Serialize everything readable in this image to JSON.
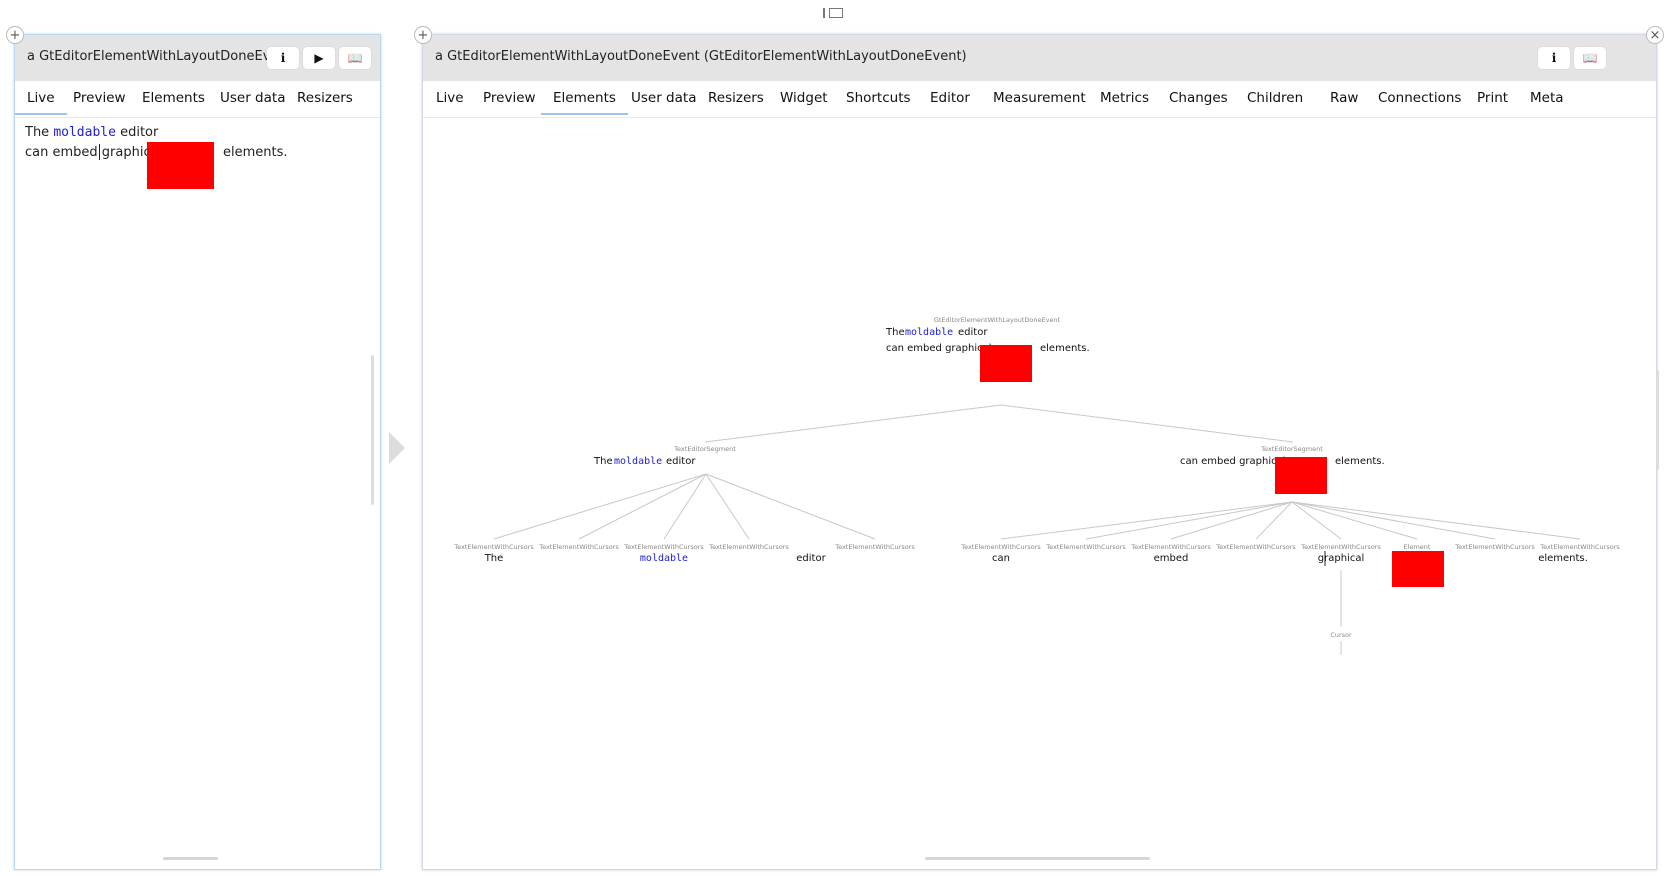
{
  "left_pane": {
    "title": "a GtEditorElementWithLayoutDoneEven",
    "tabs": [
      {
        "label": "Live",
        "active": true
      },
      {
        "label": "Preview"
      },
      {
        "label": "Elements"
      },
      {
        "label": "User data"
      },
      {
        "label": "Resizers"
      }
    ],
    "content": {
      "line1_pre": "The",
      "line1_mono": "moldable",
      "line1_post": "editor",
      "line2_pre": "can embed graphical",
      "line2_post": "elements."
    }
  },
  "right_pane": {
    "title": "a GtEditorElementWithLayoutDoneEvent (GtEditorElementWithLayoutDoneEvent)",
    "tabs": [
      {
        "label": "Live"
      },
      {
        "label": "Preview"
      },
      {
        "label": "Elements",
        "active": true
      },
      {
        "label": "User data"
      },
      {
        "label": "Resizers"
      },
      {
        "label": "Widget"
      },
      {
        "label": "Shortcuts"
      },
      {
        "label": "Editor"
      },
      {
        "label": "Measurement"
      },
      {
        "label": "Metrics"
      },
      {
        "label": "Changes"
      },
      {
        "label": "Children"
      },
      {
        "label": "Raw"
      },
      {
        "label": "Connections"
      },
      {
        "label": "Print"
      },
      {
        "label": "Meta"
      }
    ],
    "tree": {
      "root": {
        "type": "GtEditorElementWithLayoutDoneEvent",
        "line1_pre": "The",
        "line1_mono": "moldable",
        "line1_post": "editor",
        "line2_pre": "can embed graphical",
        "line2_post": "elements."
      },
      "segments": [
        {
          "type": "TextEditorSegment",
          "pre": "The",
          "mono": "moldable",
          "post": "editor",
          "children": [
            {
              "type": "TextElementWithCursors",
              "text": "The"
            },
            {
              "type": "TextElementWithCursors",
              "text": ""
            },
            {
              "type": "TextElementWithCursors",
              "text": "moldable",
              "mono": true
            },
            {
              "type": "TextElementWithCursors",
              "text": ""
            },
            {
              "type": "TextElementWithCursors",
              "text": "editor"
            }
          ]
        },
        {
          "type": "TextEditorSegment",
          "pre": "can embed graphical",
          "post": "elements.",
          "children": [
            {
              "type": "TextElementWithCursors",
              "text": "can"
            },
            {
              "type": "TextElementWithCursors",
              "text": ""
            },
            {
              "type": "TextElementWithCursors",
              "text": "embed"
            },
            {
              "type": "TextElementWithCursors",
              "text": ""
            },
            {
              "type": "TextElementWithCursors",
              "text": "graphical"
            },
            {
              "type": "Element",
              "text": ""
            },
            {
              "type": "TextElementWithCursors",
              "text": ""
            },
            {
              "type": "TextElementWithCursors",
              "text": "elements."
            }
          ]
        }
      ],
      "cursor_label": "Cursor"
    }
  },
  "colors": {
    "embedded_element": "#ff0000",
    "mono_text": "#2020d8",
    "tree_lines": "#c8c8c8",
    "active_tab_underline": "#9cc4ea"
  },
  "icons": {
    "info": "info-icon",
    "play": "play-icon",
    "book": "book-icon",
    "add": "plus-icon",
    "close": "close-icon"
  }
}
